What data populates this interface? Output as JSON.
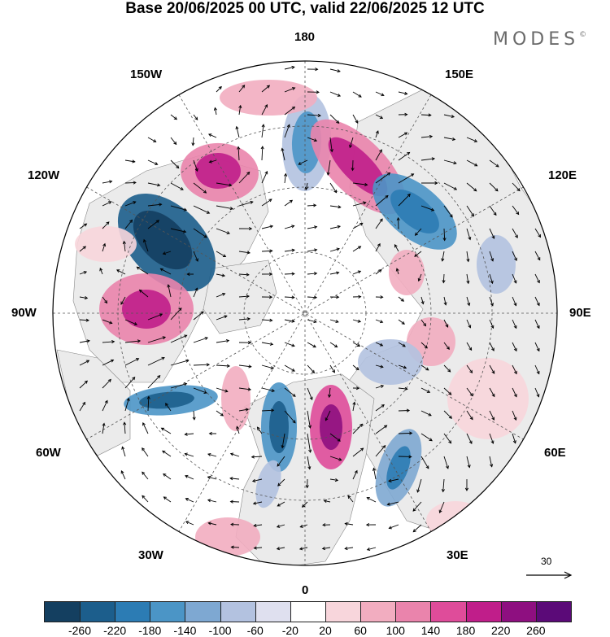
{
  "title": "Base 20/06/2025 00 UTC, valid 22/06/2025 12 UTC",
  "brand": {
    "name": "MODES",
    "mark": "©"
  },
  "longitude_labels": {
    "top": "180",
    "bottom": "0",
    "left": "90W",
    "right": "90E",
    "upper_left": "150W",
    "upper_right": "150E",
    "mid_upper_left": "120W",
    "mid_upper_right": "120E",
    "mid_lower_left": "60W",
    "mid_lower_right": "60E",
    "lower_left": "30W",
    "lower_right": "30E"
  },
  "reference_vector": {
    "value": "30"
  },
  "colorbar": {
    "ticks": [
      "-260",
      "-220",
      "-180",
      "-140",
      "-100",
      "-60",
      "-20",
      "20",
      "60",
      "100",
      "140",
      "180",
      "220",
      "260"
    ],
    "colors": [
      "#143f60",
      "#1c5e8c",
      "#2c7cb4",
      "#4b95c6",
      "#7ea8d2",
      "#b3c2e0",
      "#dfe0ef",
      "#ffffff",
      "#f8d6dc",
      "#f2adc0",
      "#ea84ac",
      "#df4c9a",
      "#c01e8a",
      "#8e0f80",
      "#5b0a78"
    ]
  },
  "map_colors": {
    "land": "#ebebeb",
    "ocean": "#ffffff",
    "grid": "#555555",
    "coast": "#888888"
  }
}
